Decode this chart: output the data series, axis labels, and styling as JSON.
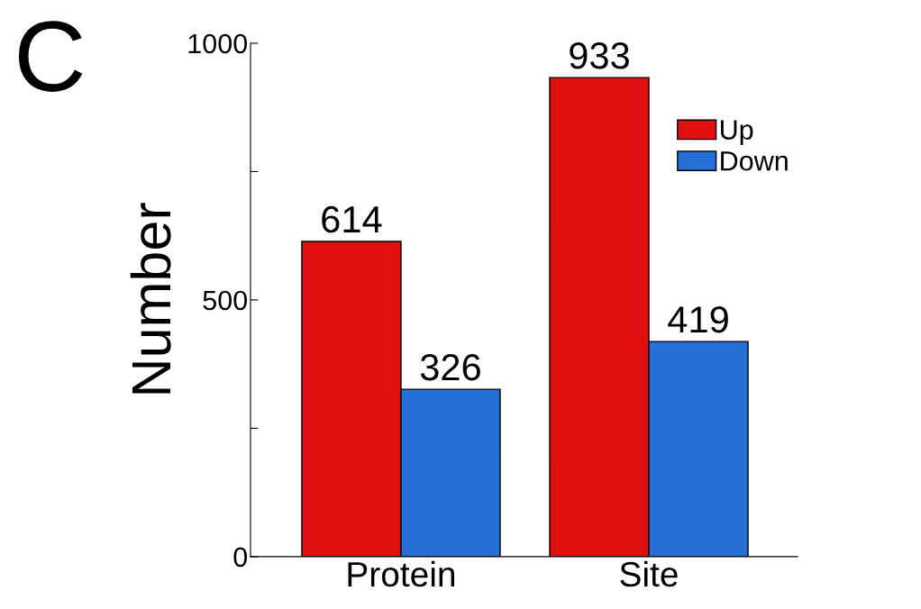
{
  "chart_data": {
    "type": "bar",
    "ylabel": "Number",
    "categories": [
      "Protein",
      "Site"
    ],
    "series": [
      {
        "name": "Up",
        "color": "#e01010",
        "values": [
          614,
          933
        ]
      },
      {
        "name": "Down",
        "color": "#2470d8",
        "values": [
          326,
          419
        ]
      }
    ],
    "ylim": [
      0,
      1000
    ],
    "yticks": [
      0,
      {
        "value": 250,
        "label": null
      },
      500,
      {
        "value": 750,
        "label": null
      },
      1000
    ],
    "data_labels": true,
    "legend": "top right",
    "grid": false,
    "annotations": [
      "C"
    ]
  }
}
